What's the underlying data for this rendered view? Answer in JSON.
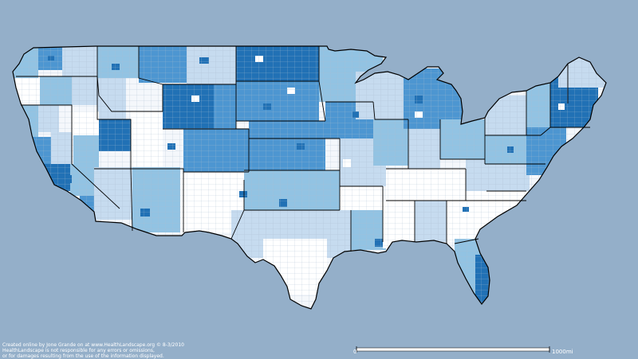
{
  "map": {
    "region": "contiguous-united-states",
    "colors": {
      "background": "#94afc9",
      "land_base": "#f4f7fb",
      "class_1": "#ffffff",
      "class_2": "#c6dbef",
      "class_3": "#92c3e3",
      "class_4": "#4d96d1",
      "class_5": "#2171b5",
      "state_border": "#000000",
      "county_border": "#9fb2c8"
    },
    "state_shading": [
      {
        "state": "WA",
        "level": 3
      },
      {
        "state": "OR",
        "level": 2
      },
      {
        "state": "CA",
        "level": 3
      },
      {
        "state": "ID",
        "level": 3
      },
      {
        "state": "NV",
        "level": 4
      },
      {
        "state": "UT",
        "level": 1
      },
      {
        "state": "AZ",
        "level": 2
      },
      {
        "state": "MT",
        "level": 3
      },
      {
        "state": "WY",
        "level": 5
      },
      {
        "state": "CO",
        "level": 4
      },
      {
        "state": "NM",
        "level": 1
      },
      {
        "state": "ND",
        "level": 5
      },
      {
        "state": "SD",
        "level": 4
      },
      {
        "state": "NE",
        "level": 4
      },
      {
        "state": "KS",
        "level": 3
      },
      {
        "state": "OK",
        "level": 3
      },
      {
        "state": "TX",
        "level": 2
      },
      {
        "state": "MN",
        "level": 3
      },
      {
        "state": "IA",
        "level": 3
      },
      {
        "state": "MO",
        "level": 2
      },
      {
        "state": "AR",
        "level": 1
      },
      {
        "state": "LA",
        "level": 2
      },
      {
        "state": "WI",
        "level": 2
      },
      {
        "state": "IL",
        "level": 2
      },
      {
        "state": "MI",
        "level": 3
      },
      {
        "state": "IN",
        "level": 2
      },
      {
        "state": "OH",
        "level": 2
      },
      {
        "state": "KY",
        "level": 1
      },
      {
        "state": "TN",
        "level": 1
      },
      {
        "state": "MS",
        "level": 1
      },
      {
        "state": "AL",
        "level": 1
      },
      {
        "state": "GA",
        "level": 1
      },
      {
        "state": "FL",
        "level": 3
      },
      {
        "state": "SC",
        "level": 1
      },
      {
        "state": "NC",
        "level": 2
      },
      {
        "state": "VA",
        "level": 2
      },
      {
        "state": "WV",
        "level": 1
      },
      {
        "state": "PA",
        "level": 3
      },
      {
        "state": "NY",
        "level": 3
      },
      {
        "state": "ME",
        "level": 3
      },
      {
        "state": "NE6",
        "level": 5
      }
    ]
  },
  "credit": {
    "line1": "Created online by Jone Grande on at www.HealthLandscape.org © 8-3/2010",
    "line2": "HealthLandscape is not responsible for any errors or omissions,",
    "line3": "or for damages resulting from the use of the information displayed."
  },
  "scale_bar": {
    "min_label": "0",
    "max_label": "1000mi"
  }
}
